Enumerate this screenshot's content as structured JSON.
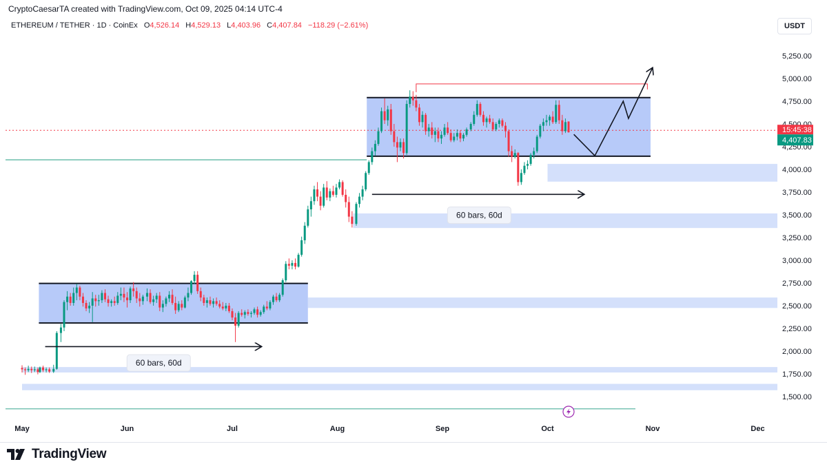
{
  "header": {
    "credit": "CryptoCaesarTA created with TradingView.com, Oct 09, 2025 04:14 UTC-4",
    "symbol": "ETHEREUM / TETHER · 1D · CoinEx",
    "o_key": "O",
    "o_val": "4,526.14",
    "h_key": "H",
    "h_val": "4,529.13",
    "l_key": "L",
    "l_val": "4,403.96",
    "c_key": "C",
    "c_val": "4,407.84",
    "change": "−118.29 (−2.61%)"
  },
  "currency_button": "USDT",
  "brand": {
    "name": "TradingView",
    "icon": "tradingview-logo-icon"
  },
  "colors": {
    "up": "#089981",
    "down": "#f23645",
    "box": "#9fb8f7",
    "zone": "#d4e0fb",
    "support": "#4caf9a"
  },
  "chart_data": {
    "type": "candlestick",
    "ylim": [
      1450,
      5400
    ],
    "y_ticks": [
      1500,
      1750,
      2000,
      2250,
      2500,
      2750,
      3000,
      3250,
      3500,
      3750,
      4000,
      4250,
      4500,
      4750,
      5000,
      5250
    ],
    "y_tick_labels": [
      "1,500.00",
      "1,750.00",
      "2,000.00",
      "2,250.00",
      "2,500.00",
      "2,750.00",
      "3,000.00",
      "3,250.00",
      "3,500.00",
      "3,750.00",
      "4,000.00",
      "4,250.00",
      "4,500.00",
      "4,750.00",
      "5,000.00",
      "5,250.00"
    ],
    "x_labels": [
      "May",
      "Jun",
      "Jul",
      "Aug",
      "Sep",
      "Oct",
      "Nov",
      "Dec"
    ],
    "last_price_label": "4,407.83",
    "countdown_label": "15:45:38",
    "price_line": 4430,
    "support_line": 4105,
    "bottom_line": 1365,
    "ranges": [
      {
        "start": 0.16,
        "end": 2.72,
        "low": 2310,
        "high": 2745
      },
      {
        "start": 3.28,
        "end": 5.98,
        "low": 4145,
        "high": 4790
      }
    ],
    "resistance_line": {
      "start": 3.75,
      "end": 5.95,
      "value": 4940
    },
    "zones": [
      {
        "start": 2.72,
        "low": 2475,
        "high": 2590
      },
      {
        "start": 5.0,
        "low": 3865,
        "high": 4060
      },
      {
        "start": 3.15,
        "low": 3355,
        "high": 3515
      },
      {
        "start": 0.0,
        "low": 1765,
        "high": 1825
      },
      {
        "start": 0.0,
        "low": 1570,
        "high": 1640
      }
    ],
    "measure_arrows": [
      {
        "start": 0.22,
        "end": 2.28,
        "value": 2050,
        "label": "60 bars, 60d",
        "label_x": 1.3,
        "label_value": 1870
      },
      {
        "start": 3.33,
        "end": 5.35,
        "value": 3725,
        "label": "60 bars, 60d",
        "label_x": 4.35,
        "label_value": 3495
      }
    ],
    "projection": [
      [
        5.25,
        4385
      ],
      [
        5.45,
        4150
      ],
      [
        5.72,
        4750
      ],
      [
        5.77,
        4560
      ],
      [
        6.0,
        5120
      ]
    ],
    "candles": [
      [
        0.0,
        1815,
        1845,
        1765,
        1800
      ],
      [
        0.03,
        1800,
        1820,
        1740,
        1790
      ],
      [
        0.06,
        1790,
        1840,
        1770,
        1805
      ],
      [
        0.09,
        1805,
        1830,
        1760,
        1790
      ],
      [
        0.12,
        1790,
        1830,
        1770,
        1800
      ],
      [
        0.15,
        1800,
        1820,
        1745,
        1770
      ],
      [
        0.17,
        1770,
        1830,
        1760,
        1820
      ],
      [
        0.2,
        1820,
        1840,
        1770,
        1790
      ],
      [
        0.23,
        1790,
        1820,
        1765,
        1800
      ],
      [
        0.26,
        1800,
        1820,
        1760,
        1775
      ],
      [
        0.3,
        1775,
        1850,
        1760,
        1805
      ],
      [
        0.33,
        1805,
        2220,
        1795,
        2200
      ],
      [
        0.37,
        2200,
        2300,
        2100,
        2260
      ],
      [
        0.4,
        2260,
        2560,
        2220,
        2540
      ],
      [
        0.43,
        2540,
        2660,
        2450,
        2600
      ],
      [
        0.46,
        2600,
        2640,
        2500,
        2530
      ],
      [
        0.49,
        2530,
        2700,
        2500,
        2640
      ],
      [
        0.52,
        2640,
        2740,
        2560,
        2700
      ],
      [
        0.55,
        2700,
        2720,
        2560,
        2600
      ],
      [
        0.58,
        2600,
        2640,
        2490,
        2530
      ],
      [
        0.61,
        2530,
        2560,
        2440,
        2470
      ],
      [
        0.64,
        2470,
        2540,
        2420,
        2500
      ],
      [
        0.67,
        2500,
        2650,
        2320,
        2580
      ],
      [
        0.7,
        2580,
        2620,
        2490,
        2550
      ],
      [
        0.73,
        2550,
        2620,
        2500,
        2560
      ],
      [
        0.76,
        2560,
        2670,
        2530,
        2640
      ],
      [
        0.79,
        2640,
        2680,
        2540,
        2570
      ],
      [
        0.82,
        2570,
        2610,
        2490,
        2530
      ],
      [
        0.85,
        2530,
        2570,
        2490,
        2550
      ],
      [
        0.88,
        2550,
        2600,
        2500,
        2530
      ],
      [
        0.91,
        2530,
        2650,
        2510,
        2610
      ],
      [
        0.94,
        2610,
        2700,
        2560,
        2630
      ],
      [
        0.97,
        2630,
        2700,
        2540,
        2590
      ],
      [
        1.0,
        2590,
        2650,
        2480,
        2560
      ],
      [
        1.03,
        2560,
        2710,
        2530,
        2690
      ],
      [
        1.06,
        2690,
        2760,
        2600,
        2660
      ],
      [
        1.09,
        2660,
        2700,
        2530,
        2580
      ],
      [
        1.12,
        2580,
        2640,
        2490,
        2550
      ],
      [
        1.15,
        2550,
        2620,
        2510,
        2600
      ],
      [
        1.19,
        2600,
        2690,
        2550,
        2640
      ],
      [
        1.22,
        2640,
        2680,
        2520,
        2540
      ],
      [
        1.25,
        2540,
        2610,
        2500,
        2570
      ],
      [
        1.28,
        2570,
        2640,
        2530,
        2610
      ],
      [
        1.31,
        2610,
        2650,
        2440,
        2480
      ],
      [
        1.34,
        2480,
        2560,
        2430,
        2520
      ],
      [
        1.37,
        2520,
        2600,
        2490,
        2580
      ],
      [
        1.4,
        2580,
        2660,
        2540,
        2620
      ],
      [
        1.43,
        2620,
        2680,
        2510,
        2530
      ],
      [
        1.46,
        2530,
        2600,
        2410,
        2450
      ],
      [
        1.49,
        2450,
        2550,
        2430,
        2520
      ],
      [
        1.52,
        2520,
        2560,
        2450,
        2480
      ],
      [
        1.55,
        2480,
        2610,
        2470,
        2590
      ],
      [
        1.58,
        2590,
        2700,
        2550,
        2640
      ],
      [
        1.61,
        2640,
        2780,
        2620,
        2770
      ],
      [
        1.64,
        2770,
        2880,
        2740,
        2840
      ],
      [
        1.67,
        2840,
        2880,
        2630,
        2660
      ],
      [
        1.7,
        2660,
        2700,
        2550,
        2590
      ],
      [
        1.73,
        2590,
        2620,
        2500,
        2530
      ],
      [
        1.76,
        2530,
        2590,
        2480,
        2560
      ],
      [
        1.79,
        2560,
        2600,
        2500,
        2520
      ],
      [
        1.82,
        2520,
        2580,
        2480,
        2550
      ],
      [
        1.85,
        2550,
        2590,
        2500,
        2520
      ],
      [
        1.88,
        2520,
        2560,
        2470,
        2490
      ],
      [
        1.91,
        2490,
        2540,
        2450,
        2470
      ],
      [
        1.94,
        2470,
        2530,
        2440,
        2500
      ],
      [
        1.97,
        2500,
        2530,
        2420,
        2440
      ],
      [
        2.0,
        2440,
        2470,
        2340,
        2370
      ],
      [
        2.03,
        2370,
        2420,
        2100,
        2280
      ],
      [
        2.06,
        2280,
        2440,
        2260,
        2420
      ],
      [
        2.09,
        2420,
        2460,
        2380,
        2400
      ],
      [
        2.12,
        2400,
        2450,
        2360,
        2430
      ],
      [
        2.15,
        2430,
        2460,
        2390,
        2410
      ],
      [
        2.18,
        2410,
        2440,
        2370,
        2420
      ],
      [
        2.21,
        2420,
        2480,
        2400,
        2460
      ],
      [
        2.24,
        2460,
        2490,
        2370,
        2400
      ],
      [
        2.27,
        2400,
        2450,
        2380,
        2430
      ],
      [
        2.3,
        2430,
        2510,
        2410,
        2490
      ],
      [
        2.33,
        2490,
        2550,
        2450,
        2470
      ],
      [
        2.36,
        2470,
        2560,
        2450,
        2540
      ],
      [
        2.39,
        2540,
        2620,
        2510,
        2600
      ],
      [
        2.42,
        2600,
        2640,
        2540,
        2560
      ],
      [
        2.45,
        2560,
        2640,
        2540,
        2620
      ],
      [
        2.48,
        2620,
        2800,
        2600,
        2780
      ],
      [
        2.51,
        2780,
        2990,
        2760,
        2960
      ],
      [
        2.54,
        2960,
        3020,
        2900,
        2940
      ],
      [
        2.57,
        2940,
        3000,
        2900,
        2970
      ],
      [
        2.6,
        2970,
        3020,
        2900,
        2930
      ],
      [
        2.63,
        2930,
        3080,
        2920,
        3060
      ],
      [
        2.66,
        3060,
        3260,
        3040,
        3220
      ],
      [
        2.69,
        3220,
        3420,
        3180,
        3380
      ],
      [
        2.72,
        3380,
        3600,
        3360,
        3560
      ],
      [
        2.75,
        3560,
        3700,
        3480,
        3650
      ],
      [
        2.78,
        3650,
        3820,
        3610,
        3780
      ],
      [
        2.81,
        3780,
        3860,
        3650,
        3700
      ],
      [
        2.84,
        3700,
        3760,
        3550,
        3600
      ],
      [
        2.87,
        3600,
        3840,
        3580,
        3800
      ],
      [
        2.9,
        3800,
        3870,
        3660,
        3690
      ],
      [
        2.93,
        3690,
        3790,
        3650,
        3760
      ],
      [
        2.96,
        3760,
        3820,
        3700,
        3720
      ],
      [
        2.99,
        3720,
        3840,
        3690,
        3800
      ],
      [
        3.02,
        3800,
        3890,
        3780,
        3860
      ],
      [
        3.05,
        3860,
        3880,
        3700,
        3720
      ],
      [
        3.08,
        3720,
        3780,
        3580,
        3640
      ],
      [
        3.11,
        3640,
        3700,
        3420,
        3480
      ],
      [
        3.14,
        3480,
        3540,
        3360,
        3400
      ],
      [
        3.18,
        3400,
        3640,
        3380,
        3620
      ],
      [
        3.21,
        3620,
        3740,
        3580,
        3700
      ],
      [
        3.24,
        3700,
        3820,
        3660,
        3780
      ],
      [
        3.27,
        3780,
        3980,
        3760,
        3960
      ],
      [
        3.3,
        3960,
        4100,
        3940,
        4080
      ],
      [
        3.33,
        4080,
        4240,
        4050,
        4200
      ],
      [
        3.36,
        4200,
        4320,
        4150,
        4280
      ],
      [
        3.39,
        4280,
        4460,
        4260,
        4420
      ],
      [
        3.42,
        4420,
        4680,
        4400,
        4640
      ],
      [
        3.45,
        4640,
        4780,
        4500,
        4540
      ],
      [
        3.48,
        4540,
        4700,
        4480,
        4660
      ],
      [
        3.51,
        4660,
        4720,
        4380,
        4420
      ],
      [
        3.54,
        4420,
        4500,
        4250,
        4300
      ],
      [
        3.57,
        4300,
        4360,
        4080,
        4240
      ],
      [
        3.6,
        4240,
        4340,
        4200,
        4300
      ],
      [
        3.63,
        4300,
        4340,
        4120,
        4180
      ],
      [
        3.66,
        4180,
        4760,
        4160,
        4720
      ],
      [
        3.69,
        4720,
        4870,
        4680,
        4800
      ],
      [
        3.72,
        4800,
        4860,
        4700,
        4760
      ],
      [
        3.75,
        4760,
        4820,
        4640,
        4680
      ],
      [
        3.78,
        4680,
        4720,
        4480,
        4520
      ],
      [
        3.81,
        4520,
        4640,
        4460,
        4600
      ],
      [
        3.84,
        4600,
        4620,
        4380,
        4420
      ],
      [
        3.87,
        4420,
        4500,
        4360,
        4460
      ],
      [
        3.9,
        4460,
        4520,
        4340,
        4380
      ],
      [
        3.93,
        4380,
        4460,
        4300,
        4420
      ],
      [
        3.96,
        4420,
        4460,
        4300,
        4340
      ],
      [
        3.99,
        4340,
        4420,
        4280,
        4380
      ],
      [
        4.02,
        4380,
        4500,
        4360,
        4460
      ],
      [
        4.05,
        4460,
        4520,
        4380,
        4400
      ],
      [
        4.08,
        4400,
        4440,
        4300,
        4320
      ],
      [
        4.11,
        4320,
        4400,
        4300,
        4360
      ],
      [
        4.14,
        4360,
        4440,
        4320,
        4400
      ],
      [
        4.17,
        4400,
        4430,
        4300,
        4340
      ],
      [
        4.2,
        4340,
        4400,
        4310,
        4380
      ],
      [
        4.23,
        4380,
        4460,
        4360,
        4440
      ],
      [
        4.27,
        4440,
        4520,
        4420,
        4500
      ],
      [
        4.3,
        4500,
        4640,
        4480,
        4600
      ],
      [
        4.33,
        4600,
        4760,
        4580,
        4720
      ],
      [
        4.36,
        4720,
        4740,
        4580,
        4600
      ],
      [
        4.39,
        4600,
        4640,
        4480,
        4520
      ],
      [
        4.42,
        4520,
        4580,
        4460,
        4560
      ],
      [
        4.45,
        4560,
        4600,
        4500,
        4520
      ],
      [
        4.48,
        4520,
        4560,
        4420,
        4440
      ],
      [
        4.51,
        4440,
        4520,
        4420,
        4500
      ],
      [
        4.54,
        4500,
        4560,
        4460,
        4540
      ],
      [
        4.57,
        4540,
        4560,
        4460,
        4480
      ],
      [
        4.6,
        4480,
        4520,
        4350,
        4420
      ],
      [
        4.63,
        4420,
        4440,
        4140,
        4200
      ],
      [
        4.66,
        4200,
        4260,
        4080,
        4140
      ],
      [
        4.69,
        4140,
        4220,
        4120,
        4180
      ],
      [
        4.72,
        4180,
        4190,
        3820,
        3860
      ],
      [
        4.75,
        3860,
        4000,
        3830,
        3960
      ],
      [
        4.78,
        3960,
        4080,
        3940,
        4040
      ],
      [
        4.81,
        4040,
        4100,
        4000,
        4060
      ],
      [
        4.84,
        4060,
        4180,
        4040,
        4160
      ],
      [
        4.87,
        4160,
        4240,
        4120,
        4200
      ],
      [
        4.9,
        4200,
        4380,
        4180,
        4360
      ],
      [
        4.93,
        4360,
        4500,
        4340,
        4480
      ],
      [
        4.96,
        4480,
        4560,
        4420,
        4520
      ],
      [
        4.99,
        4520,
        4600,
        4480,
        4540
      ],
      [
        5.02,
        4540,
        4600,
        4480,
        4580
      ],
      [
        5.05,
        4580,
        4640,
        4500,
        4520
      ],
      [
        5.08,
        4520,
        4760,
        4500,
        4710
      ],
      [
        5.11,
        4710,
        4760,
        4500,
        4540
      ],
      [
        5.14,
        4540,
        4600,
        4380,
        4420
      ],
      [
        5.17,
        4420,
        4560,
        4400,
        4520
      ],
      [
        5.2,
        4526,
        4529,
        4404,
        4408
      ]
    ]
  }
}
